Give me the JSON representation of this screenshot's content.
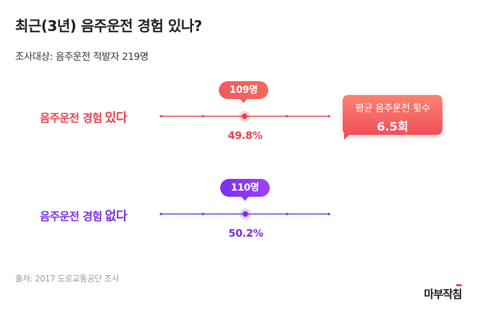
{
  "title": "최근(3년) 음주운전 경험 있나?",
  "subtitle": "조사대상: 음주운전 적발자 219명",
  "chart_data": {
    "type": "dot",
    "series": [
      {
        "label_prefix": "음주운전 경험",
        "label_emphasis": "있다",
        "count_label": "109명",
        "value": 49.8,
        "value_label": "49.8%",
        "color": "#e8404d"
      },
      {
        "label_prefix": "음주운전 경험",
        "label_emphasis": "없다",
        "count_label": "110명",
        "value": 50.2,
        "value_label": "50.2%",
        "color": "#7a2fe0"
      }
    ],
    "xlim": [
      0,
      100
    ],
    "annotation": {
      "label": "평균 음주운전 횟수",
      "value": "6.5회"
    }
  },
  "source": "출처: 2017 도로교통공단 조사",
  "logo": "마부작침"
}
